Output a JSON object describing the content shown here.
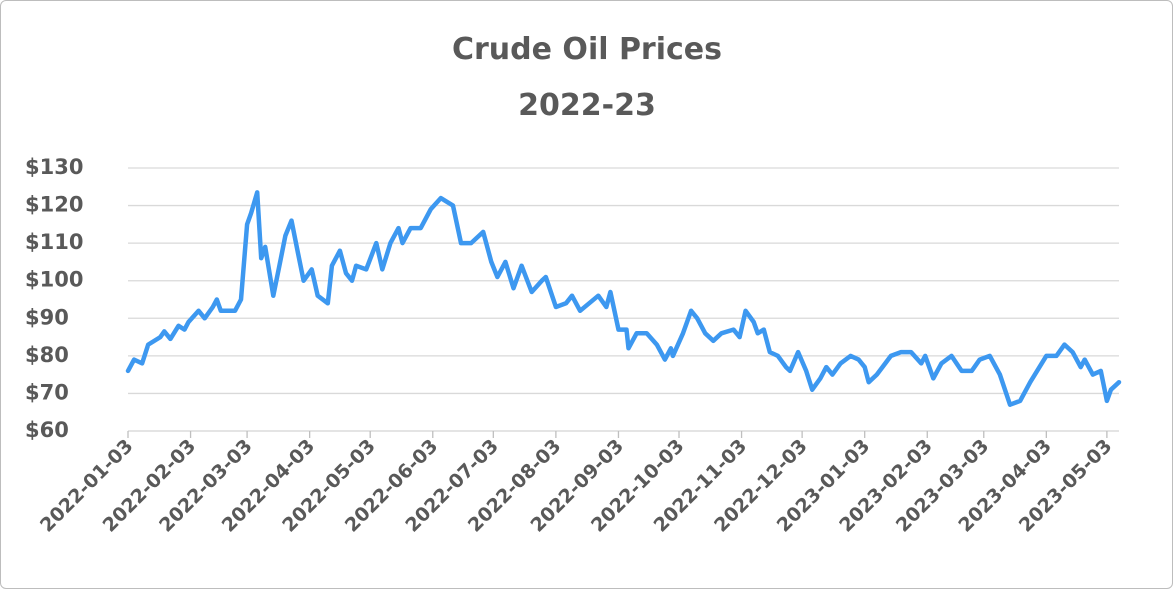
{
  "chart_data": {
    "type": "line",
    "title": "Crude Oil Prices",
    "subtitle": "2022-23",
    "x": [
      "2022-01-03",
      "2022-01-06",
      "2022-01-10",
      "2022-01-13",
      "2022-01-19",
      "2022-01-21",
      "2022-01-24",
      "2022-01-28",
      "2022-01-31",
      "2022-02-02",
      "2022-02-07",
      "2022-02-10",
      "2022-02-14",
      "2022-02-16",
      "2022-02-18",
      "2022-02-25",
      "2022-02-28",
      "2022-03-03",
      "2022-03-05",
      "2022-03-08",
      "2022-03-10",
      "2022-03-12",
      "2022-03-16",
      "2022-03-19",
      "2022-03-22",
      "2022-03-25",
      "2022-03-28",
      "2022-03-31",
      "2022-04-04",
      "2022-04-07",
      "2022-04-12",
      "2022-04-14",
      "2022-04-18",
      "2022-04-21",
      "2022-04-24",
      "2022-04-26",
      "2022-05-01",
      "2022-05-06",
      "2022-05-09",
      "2022-05-13",
      "2022-05-17",
      "2022-05-19",
      "2022-05-23",
      "2022-05-28",
      "2022-06-02",
      "2022-06-07",
      "2022-06-13",
      "2022-06-17",
      "2022-06-22",
      "2022-06-28",
      "2022-07-02",
      "2022-07-05",
      "2022-07-09",
      "2022-07-13",
      "2022-07-17",
      "2022-07-22",
      "2022-07-27",
      "2022-07-29",
      "2022-08-03",
      "2022-08-08",
      "2022-08-11",
      "2022-08-15",
      "2022-08-24",
      "2022-08-28",
      "2022-08-30",
      "2022-09-03",
      "2022-09-07",
      "2022-09-08",
      "2022-09-12",
      "2022-09-17",
      "2022-09-22",
      "2022-09-26",
      "2022-09-29",
      "2022-09-30",
      "2022-10-05",
      "2022-10-09",
      "2022-10-12",
      "2022-10-16",
      "2022-10-20",
      "2022-10-24",
      "2022-10-30",
      "2022-11-02",
      "2022-11-05",
      "2022-11-09",
      "2022-11-11",
      "2022-11-14",
      "2022-11-17",
      "2022-11-21",
      "2022-11-25",
      "2022-11-27",
      "2022-12-01",
      "2022-12-05",
      "2022-12-08",
      "2022-12-12",
      "2022-12-15",
      "2022-12-18",
      "2022-12-22",
      "2022-12-27",
      "2022-12-31",
      "2023-01-03",
      "2023-01-05",
      "2023-01-09",
      "2023-01-16",
      "2023-01-21",
      "2023-01-26",
      "2023-01-31",
      "2023-02-02",
      "2023-02-06",
      "2023-02-10",
      "2023-02-15",
      "2023-02-20",
      "2023-02-25",
      "2023-03-01",
      "2023-03-06",
      "2023-03-11",
      "2023-03-16",
      "2023-03-21",
      "2023-03-26",
      "2023-04-03",
      "2023-04-08",
      "2023-04-12",
      "2023-04-16",
      "2023-04-20",
      "2023-04-22",
      "2023-04-26",
      "2023-04-30",
      "2023-05-03",
      "2023-05-05",
      "2023-05-09"
    ],
    "series": [
      {
        "name": "Crude Oil",
        "color": "#3d98f0",
        "values": [
          76,
          79,
          78,
          83,
          85,
          86.5,
          84.5,
          88,
          87,
          89,
          92,
          90,
          93,
          95,
          92,
          92,
          95,
          115,
          118,
          123.5,
          106,
          109,
          96,
          104,
          112,
          116,
          108,
          100,
          103,
          96,
          94,
          104,
          108,
          102,
          100,
          104,
          103,
          110,
          103,
          110,
          114,
          110,
          114,
          114,
          119,
          122,
          120,
          110,
          110,
          113,
          105,
          101,
          105,
          98,
          104,
          97,
          100,
          101,
          93,
          94,
          96,
          92,
          96,
          93,
          97,
          87,
          87,
          82,
          86,
          86,
          83,
          79,
          82,
          80,
          86,
          92,
          90,
          86,
          84,
          86,
          87,
          85,
          92,
          89,
          86,
          87,
          81,
          80,
          77,
          76,
          81,
          76,
          71,
          74,
          77,
          75,
          78,
          80,
          79,
          77,
          73,
          75,
          80,
          81,
          81,
          78,
          80,
          74,
          78,
          80,
          76,
          76,
          79,
          80,
          75,
          67,
          68,
          73,
          80,
          80,
          83,
          81,
          77,
          79,
          75,
          76,
          68,
          71,
          73
        ]
      }
    ],
    "xlim": [
      "2022-01-03",
      "2023-05-09"
    ],
    "xticks": [
      "2022-01-03",
      "2022-02-03",
      "2022-03-03",
      "2022-04-03",
      "2022-05-03",
      "2022-06-03",
      "2022-07-03",
      "2022-08-03",
      "2022-09-03",
      "2022-10-03",
      "2022-11-03",
      "2022-12-03",
      "2023-01-03",
      "2023-02-03",
      "2023-03-03",
      "2023-04-03",
      "2023-05-03"
    ],
    "ylim": [
      60,
      130
    ],
    "yticks": [
      {
        "value": 60,
        "label": "$60"
      },
      {
        "value": 70,
        "label": "$70"
      },
      {
        "value": 80,
        "label": "$80"
      },
      {
        "value": 90,
        "label": "$90"
      },
      {
        "value": 100,
        "label": "$100"
      },
      {
        "value": 110,
        "label": "$110"
      },
      {
        "value": 120,
        "label": "$120"
      },
      {
        "value": 130,
        "label": "$130"
      }
    ],
    "grid": true
  }
}
